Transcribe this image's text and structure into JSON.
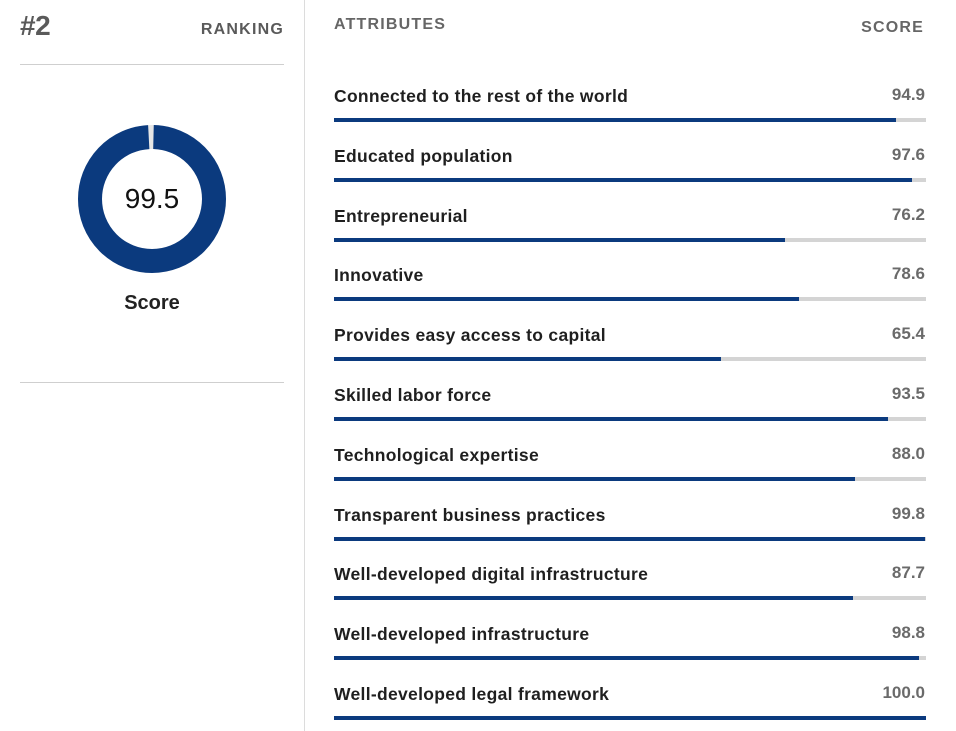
{
  "ranking": {
    "rank": "#2",
    "label": "RANKING"
  },
  "overall": {
    "score": "99.5",
    "score_fraction": 0.995,
    "caption": "Score"
  },
  "table": {
    "attributes_header": "ATTRIBUTES",
    "score_header": "SCORE"
  },
  "colors": {
    "accent": "#0b3a7e",
    "track": "#d4d4d4"
  },
  "attributes": [
    {
      "label": "Connected to the rest of the world",
      "score": "94.9",
      "value": 94.9
    },
    {
      "label": "Educated population",
      "score": "97.6",
      "value": 97.6
    },
    {
      "label": "Entrepreneurial",
      "score": "76.2",
      "value": 76.2
    },
    {
      "label": "Innovative",
      "score": "78.6",
      "value": 78.6
    },
    {
      "label": "Provides easy access to capital",
      "score": "65.4",
      "value": 65.4
    },
    {
      "label": "Skilled labor force",
      "score": "93.5",
      "value": 93.5
    },
    {
      "label": "Technological expertise",
      "score": "88.0",
      "value": 88.0
    },
    {
      "label": "Transparent business practices",
      "score": "99.8",
      "value": 99.8
    },
    {
      "label": "Well-developed digital infrastructure",
      "score": "87.7",
      "value": 87.7
    },
    {
      "label": "Well-developed infrastructure",
      "score": "98.8",
      "value": 98.8
    },
    {
      "label": "Well-developed legal framework",
      "score": "100.0",
      "value": 100.0
    }
  ]
}
